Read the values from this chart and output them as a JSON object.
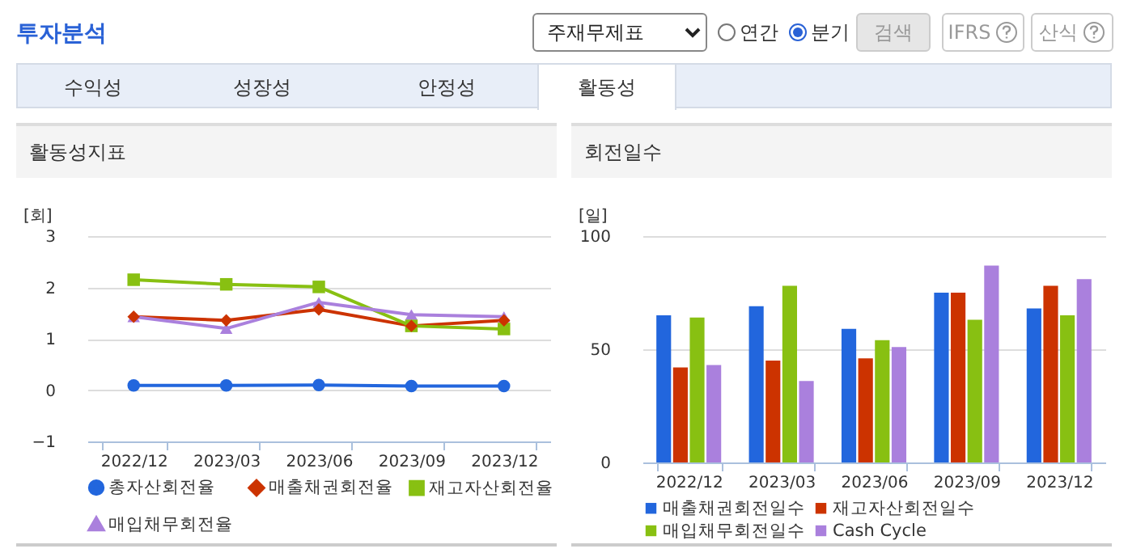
{
  "chart_data": [
    {
      "type": "other",
      "title": "투자분석",
      "annotations": [
        "주재무제표",
        "연간",
        "분기",
        "검색",
        "IFRS",
        "산식",
        "수익성",
        "성장성",
        "안정성",
        "활동성"
      ]
    },
    {
      "type": "line",
      "title": "활동성지표",
      "ylabel": "[회]",
      "categories": [
        "2022/12",
        "2023/03",
        "2023/06",
        "2023/09",
        "2023/12"
      ],
      "ylim": [
        -1,
        3
      ],
      "yticks": [
        -1,
        0,
        1,
        2,
        3
      ],
      "grid": "y",
      "legend": "bottom",
      "series": [
        {
          "name": "총자산회전율",
          "color": "#2266dd",
          "marker": "circle",
          "values": [
            0.09,
            0.09,
            0.1,
            0.08,
            0.08
          ]
        },
        {
          "name": "매출채권회전율",
          "color": "#cc3300",
          "marker": "diamond",
          "values": [
            1.43,
            1.36,
            1.57,
            1.25,
            1.36
          ]
        },
        {
          "name": "재고자산회전율",
          "color": "#88c012",
          "marker": "square",
          "values": [
            2.15,
            2.06,
            2.01,
            1.25,
            1.19
          ]
        },
        {
          "name": "매입채무회전율",
          "color": "#aa80dd",
          "marker": "triangle",
          "values": [
            1.43,
            1.2,
            1.71,
            1.47,
            1.43
          ]
        }
      ]
    },
    {
      "type": "bar",
      "title": "회전일수",
      "ylabel": "[일]",
      "categories": [
        "2022/12",
        "2023/03",
        "2023/06",
        "2023/09",
        "2023/12"
      ],
      "ylim": [
        0,
        100
      ],
      "yticks": [
        0,
        50,
        100
      ],
      "grid": "y",
      "legend": "bottom",
      "series": [
        {
          "name": "매출채권회전일수",
          "color": "#2266dd",
          "values": [
            65,
            69,
            59,
            75,
            68
          ]
        },
        {
          "name": "재고자산회전일수",
          "color": "#cc3300",
          "values": [
            42,
            45,
            46,
            75,
            78
          ]
        },
        {
          "name": "매입채무회전일수",
          "color": "#88c012",
          "values": [
            64,
            78,
            54,
            63,
            65
          ]
        },
        {
          "name": "Cash Cycle",
          "color": "#aa80dd",
          "values": [
            43,
            36,
            51,
            87,
            81
          ]
        }
      ]
    }
  ]
}
